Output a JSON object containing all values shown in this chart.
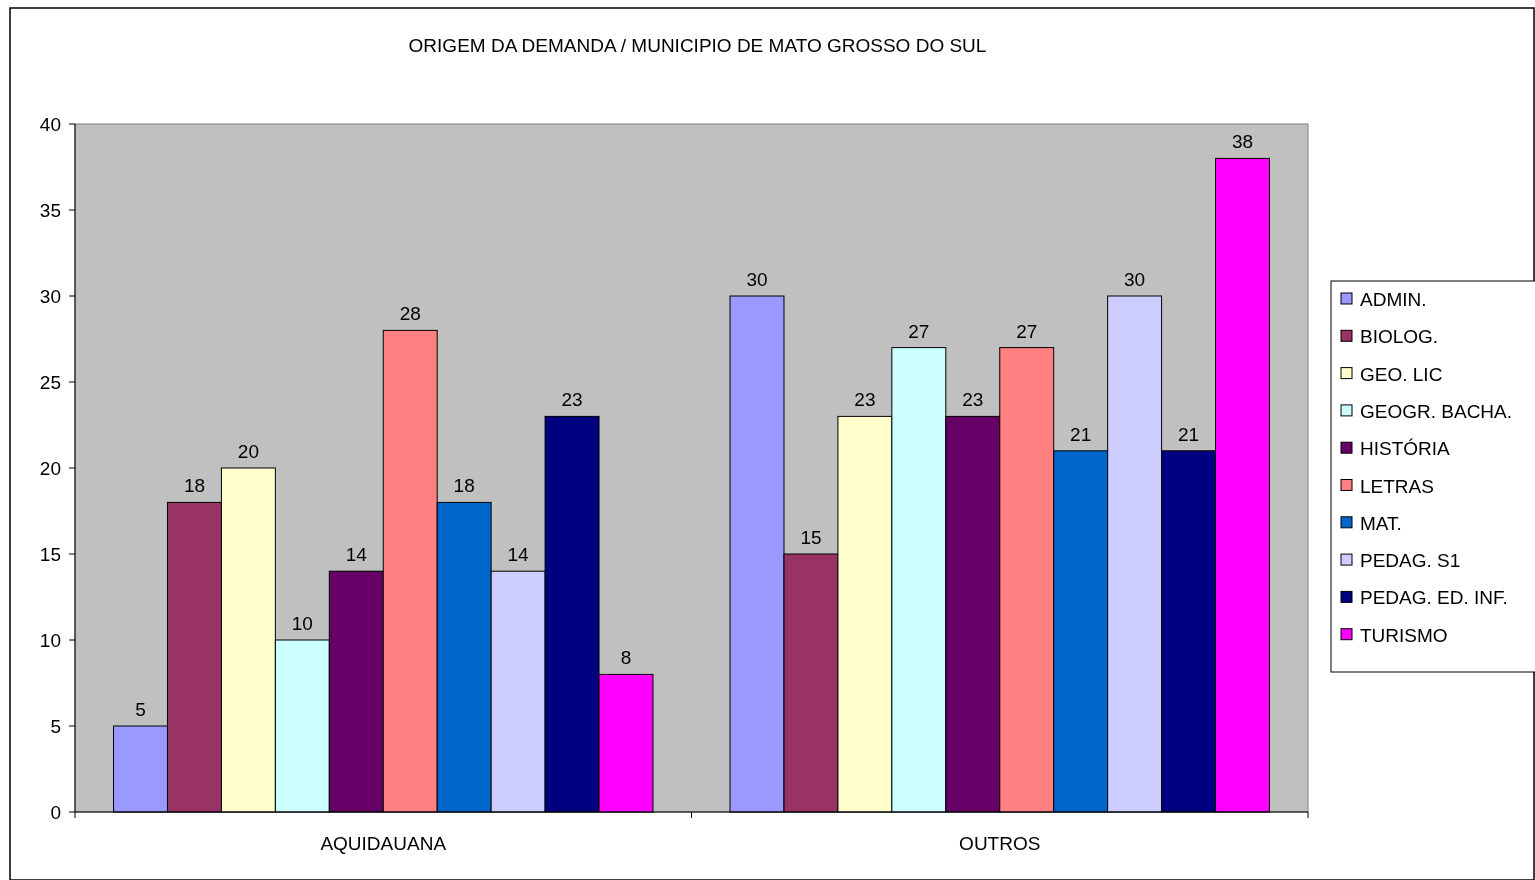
{
  "chart_data": {
    "type": "bar",
    "title": "ORIGEM DA DEMANDA / MUNICIPIO DE MATO GROSSO DO SUL",
    "categories": [
      "AQUIDAUANA",
      "OUTROS"
    ],
    "series": [
      {
        "name": "ADMIN.",
        "color": "#9999ff",
        "values": [
          5,
          30
        ]
      },
      {
        "name": "BIOLOG.",
        "color": "#993366",
        "values": [
          18,
          15
        ]
      },
      {
        "name": "GEO. LIC",
        "color": "#ffffcc",
        "values": [
          20,
          23
        ]
      },
      {
        "name": "GEOGR. BACHA.",
        "color": "#ccffff",
        "values": [
          10,
          27
        ]
      },
      {
        "name": "HISTÓRIA",
        "color": "#660066",
        "values": [
          14,
          23
        ]
      },
      {
        "name": "LETRAS",
        "color": "#ff8080",
        "values": [
          28,
          27
        ]
      },
      {
        "name": "MAT.",
        "color": "#0066cc",
        "values": [
          18,
          21
        ]
      },
      {
        "name": "PEDAG. S1",
        "color": "#ccccff",
        "values": [
          14,
          30
        ]
      },
      {
        "name": "PEDAG. ED. INF.",
        "color": "#000080",
        "values": [
          23,
          21
        ]
      },
      {
        "name": "TURISMO",
        "color": "#ff00ff",
        "values": [
          8,
          38
        ]
      }
    ],
    "ylim": [
      0,
      40
    ],
    "yticks": [
      0,
      5,
      10,
      15,
      20,
      25,
      30,
      35,
      40
    ],
    "data_labels": true,
    "legend": "right"
  }
}
